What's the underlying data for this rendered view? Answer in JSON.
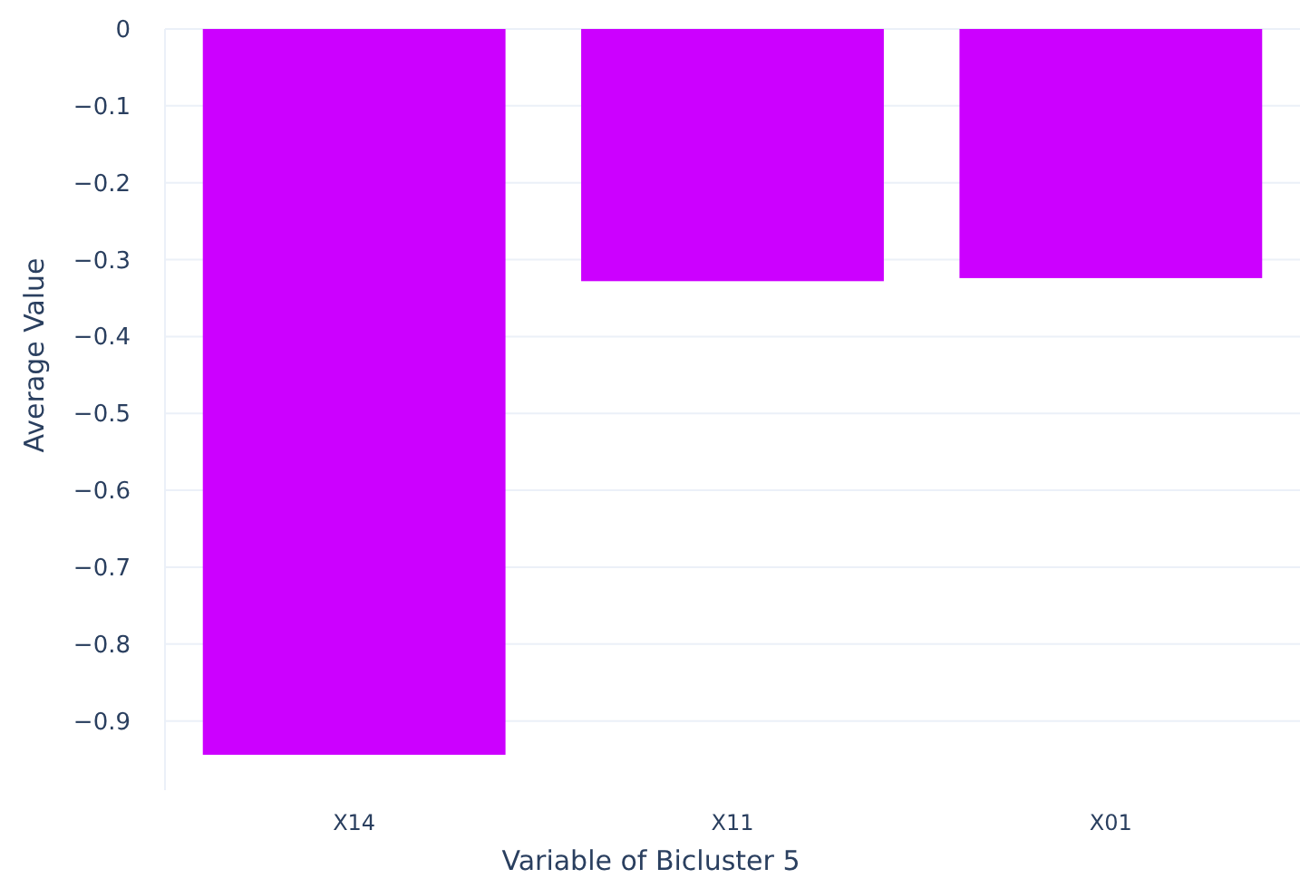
{
  "chart_data": {
    "type": "bar",
    "xlabel": "Variable of Bicluster 5",
    "ylabel": "Average Value",
    "categories": [
      "X14",
      "X11",
      "X01"
    ],
    "values": [
      -0.944,
      -0.328,
      -0.324
    ],
    "color": "#cc00ff",
    "ylim": [
      -0.99,
      0
    ],
    "yticks": [
      0,
      -0.1,
      -0.2,
      -0.3,
      -0.4,
      -0.5,
      -0.6,
      -0.7,
      -0.8,
      -0.9
    ],
    "grid": "y"
  }
}
